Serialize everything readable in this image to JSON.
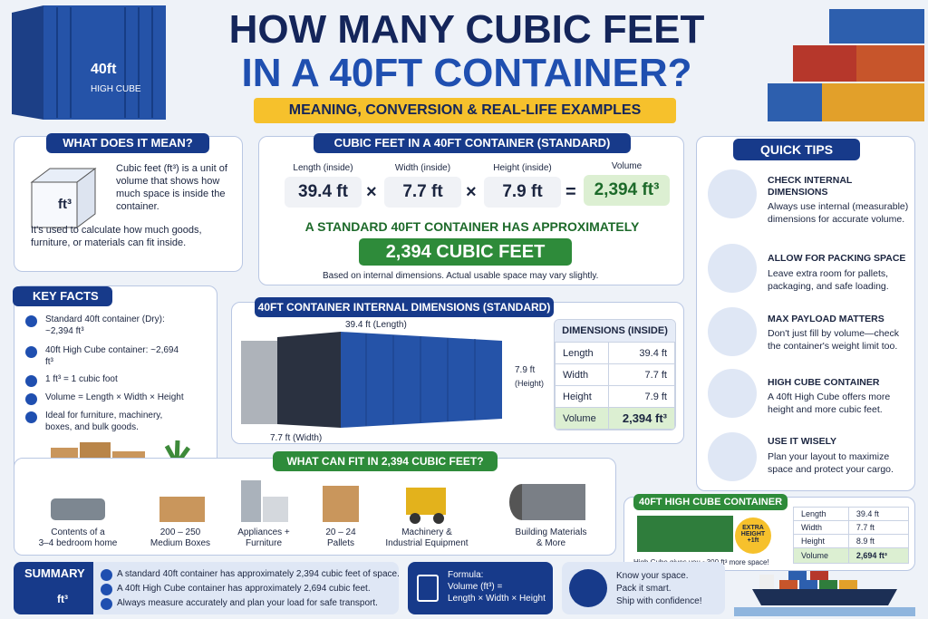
{
  "header": {
    "title_line1": "HOW MANY CUBIC FEET",
    "title_line2": "IN A 40FT CONTAINER?",
    "subtitle": "MEANING, CONVERSION & REAL-LIFE EXAMPLES",
    "container_label": "40ft",
    "container_sublabel": "HIGH CUBE"
  },
  "meaning": {
    "title": "WHAT DOES IT MEAN?",
    "icon_label": "ft³",
    "text1": "Cubic feet (ft³) is a unit of volume that shows how much space is inside the container.",
    "text2": "It's used to calculate how much goods, furniture, or materials can fit inside."
  },
  "calculation": {
    "title": "CUBIC FEET IN A 40FT CONTAINER (STANDARD)",
    "factors": [
      {
        "label": "Length (inside)",
        "value": "39.4 ft"
      },
      {
        "label": "Width (inside)",
        "value": "7.7 ft"
      },
      {
        "label": "Height (inside)",
        "value": "7.9 ft"
      }
    ],
    "operators": [
      "×",
      "×",
      "="
    ],
    "result": {
      "label": "Volume",
      "value": "2,394 ft³"
    },
    "statement": "A STANDARD 40FT CONTAINER HAS APPROXIMATELY",
    "highlight": "2,394 CUBIC FEET",
    "note": "Based on internal dimensions. Actual usable space may vary slightly."
  },
  "key_facts": {
    "title": "KEY FACTS",
    "items": [
      "Standard 40ft container (Dry): ~2,394 ft³",
      "40ft High Cube container: ~2,694 ft³",
      "1 ft³ = 1 cubic foot",
      "Volume = Length × Width × Height",
      "Ideal for furniture, machinery, boxes, and bulk goods."
    ]
  },
  "dimensions": {
    "title": "40FT CONTAINER INTERNAL DIMENSIONS (STANDARD)",
    "length_label": "39.4 ft (Length)",
    "height_label": "7.9 ft",
    "height_sublabel": "(Height)",
    "width_label": "7.7 ft (Width)",
    "table": {
      "title": "DIMENSIONS (INSIDE)",
      "rows": [
        [
          "Length",
          "39.4 ft"
        ],
        [
          "Width",
          "7.7 ft"
        ],
        [
          "Height",
          "7.9 ft"
        ],
        [
          "Volume",
          "2,394 ft³"
        ]
      ]
    }
  },
  "what_fits": {
    "title": "WHAT CAN FIT IN 2,394 CUBIC FEET?",
    "items": [
      [
        "Contents of a",
        "3–4 bedroom home"
      ],
      [
        "200 – 250",
        "Medium Boxes"
      ],
      [
        "Appliances +",
        "Furniture"
      ],
      [
        "20 – 24",
        "Pallets"
      ],
      [
        "Machinery &",
        "Industrial Equipment"
      ],
      [
        "Building Materials",
        "& More"
      ]
    ]
  },
  "quick_tips": {
    "title": "QUICK TIPS",
    "tips": [
      {
        "title": "CHECK INTERNAL DIMENSIONS",
        "text": "Always use internal (measurable) dimensions for accurate volume."
      },
      {
        "title": "ALLOW FOR PACKING SPACE",
        "text": "Leave extra room for pallets, packaging, and safe loading."
      },
      {
        "title": "MAX PAYLOAD MATTERS",
        "text": "Don't just fill by volume—check the container's weight limit too."
      },
      {
        "title": "HIGH CUBE CONTAINER",
        "text": "A 40ft High Cube offers more height and more cubic feet."
      },
      {
        "title": "USE IT WISELY",
        "text": "Plan your layout to maximize space and protect your cargo."
      }
    ]
  },
  "high_cube": {
    "title": "40FT HIGH CUBE CONTAINER",
    "badge": "EXTRA HEIGHT +1ft",
    "note": "High Cube gives you ~300 ft³ more space!",
    "rows": [
      [
        "Length",
        "39.4 ft"
      ],
      [
        "Width",
        "7.7 ft"
      ],
      [
        "Height",
        "8.9 ft"
      ],
      [
        "Volume",
        "2,694 ft³"
      ]
    ]
  },
  "summary": {
    "title": "SUMMARY",
    "icon_label": "ft³",
    "items": [
      "A standard 40ft container has approximately 2,394 cubic feet of space.",
      "A 40ft High Cube container has approximately 2,694 cubic feet.",
      "Always measure accurately and plan your load for safe transport."
    ]
  },
  "formula": {
    "label": "Formula:",
    "line1": "Volume (ft³) =",
    "line2": "Length × Width × Height"
  },
  "closing": {
    "lines": [
      "Know your space.",
      "Pack it smart.",
      "Ship with confidence!"
    ]
  }
}
